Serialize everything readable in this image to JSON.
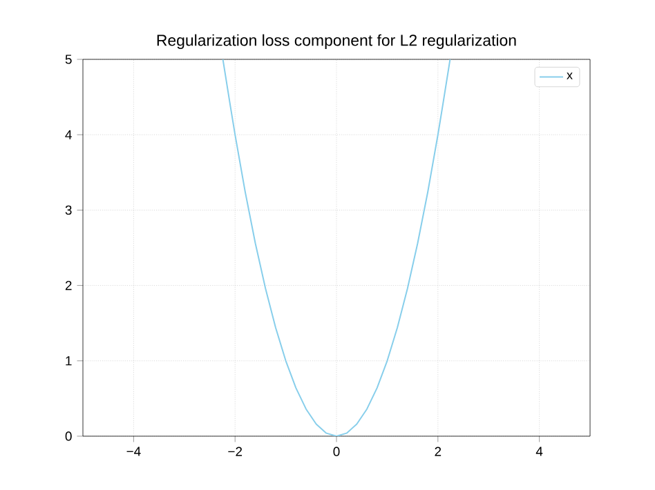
{
  "chart_data": {
    "type": "line",
    "title": "Regularization loss component for L2 regularization",
    "series": [
      {
        "name": "x",
        "color": "#87ceeb",
        "x": [
          -2.24,
          -2.1,
          -2.0,
          -1.8,
          -1.6,
          -1.4,
          -1.2,
          -1.0,
          -0.8,
          -0.6,
          -0.4,
          -0.2,
          0.0,
          0.2,
          0.4,
          0.6,
          0.8,
          1.0,
          1.2,
          1.4,
          1.6,
          1.8,
          2.0,
          2.1,
          2.24
        ],
        "values": [
          5.0,
          4.41,
          4.0,
          3.24,
          2.56,
          1.96,
          1.44,
          1.0,
          0.64,
          0.36,
          0.16,
          0.04,
          0.0,
          0.04,
          0.16,
          0.36,
          0.64,
          1.0,
          1.44,
          1.96,
          2.56,
          3.24,
          4.0,
          4.41,
          5.0
        ]
      }
    ],
    "xlim": [
      -5,
      5
    ],
    "ylim": [
      0,
      5
    ],
    "xticks": [
      {
        "value": -4,
        "label": "−4"
      },
      {
        "value": -2,
        "label": "−2"
      },
      0,
      2,
      4
    ],
    "yticks": [
      0,
      1,
      2,
      3,
      4,
      5
    ],
    "grid": true,
    "legend": "top right",
    "marker": "none",
    "line_style": "solid"
  }
}
